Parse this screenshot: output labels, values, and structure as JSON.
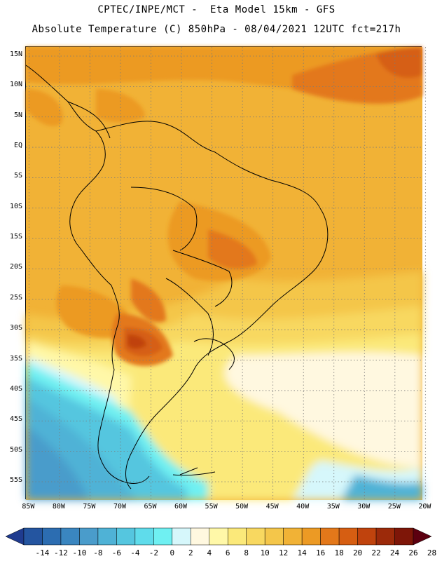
{
  "header": {
    "line1": "CPTEC/INPE/MCT -  Eta Model 15km - GFS",
    "line2": "Absolute Temperature (C) 850hPa - 08/04/2021 12UTC fct=217h"
  },
  "map": {
    "lat_ticks": [
      "15N",
      "10N",
      "5N",
      "EQ",
      "5S",
      "10S",
      "15S",
      "20S",
      "25S",
      "30S",
      "35S",
      "40S",
      "45S",
      "50S",
      "55S"
    ],
    "lon_ticks": [
      "85W",
      "80W",
      "75W",
      "70W",
      "65W",
      "60W",
      "55W",
      "50W",
      "45W",
      "40W",
      "35W",
      "30W",
      "25W",
      "20W"
    ],
    "extent": {
      "lon": [
        -85.5,
        -20.5
      ],
      "lat": [
        -58,
        16.5
      ]
    }
  },
  "colorbar": {
    "labels": [
      "-14",
      "-12",
      "-10",
      "-8",
      "-6",
      "-4",
      "-2",
      "0",
      "2",
      "4",
      "6",
      "8",
      "10",
      "12",
      "14",
      "16",
      "18",
      "20",
      "22",
      "24",
      "26",
      "28"
    ],
    "colors": [
      "#1f3b8f",
      "#2455a0",
      "#2c6db1",
      "#3a86c0",
      "#4a9ccb",
      "#4fb2d6",
      "#55c6df",
      "#5fdceb",
      "#6ff0f2",
      "#d6f7fb",
      "#fff8e0",
      "#fff8a8",
      "#fbe97a",
      "#f8d860",
      "#f4c64a",
      "#f1b236",
      "#ec9a24",
      "#e3781a",
      "#d65e12",
      "#c0430d",
      "#9c2a0a",
      "#7e1608",
      "#5c0010"
    ]
  }
}
